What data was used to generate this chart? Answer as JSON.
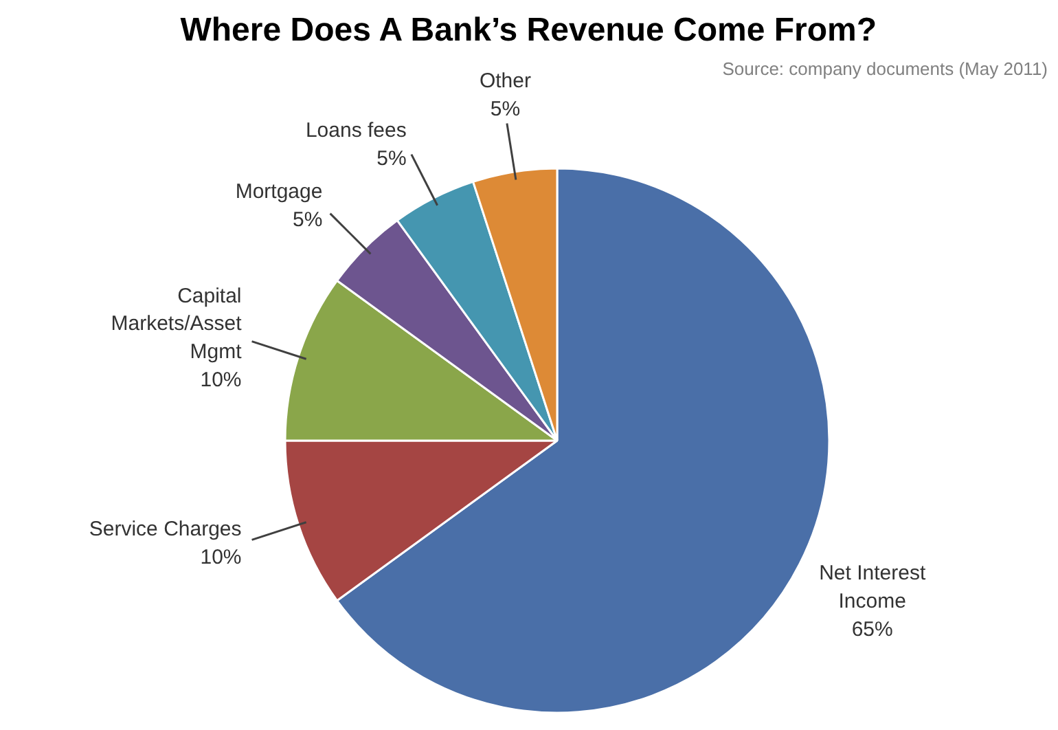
{
  "chart_data": {
    "type": "pie",
    "title": "Where Does A Bank’s Revenue Come From?",
    "annotations": [
      "Source: company documents (May 2011)"
    ],
    "categories": [
      "Net Interest\nIncome",
      "Service Charges",
      "Capital\nMarkets/Asset\nMgmt",
      "Mortgage",
      "Loans fees",
      "Other"
    ],
    "values": [
      65,
      10,
      10,
      5,
      5,
      5
    ],
    "colors": [
      "#4a6fa8",
      "#a54543",
      "#8aa64a",
      "#6d558f",
      "#4596b0",
      "#dd8a36"
    ],
    "value_labels": [
      "65%",
      "10%",
      "10%",
      "5%",
      "5%",
      "5%"
    ]
  }
}
